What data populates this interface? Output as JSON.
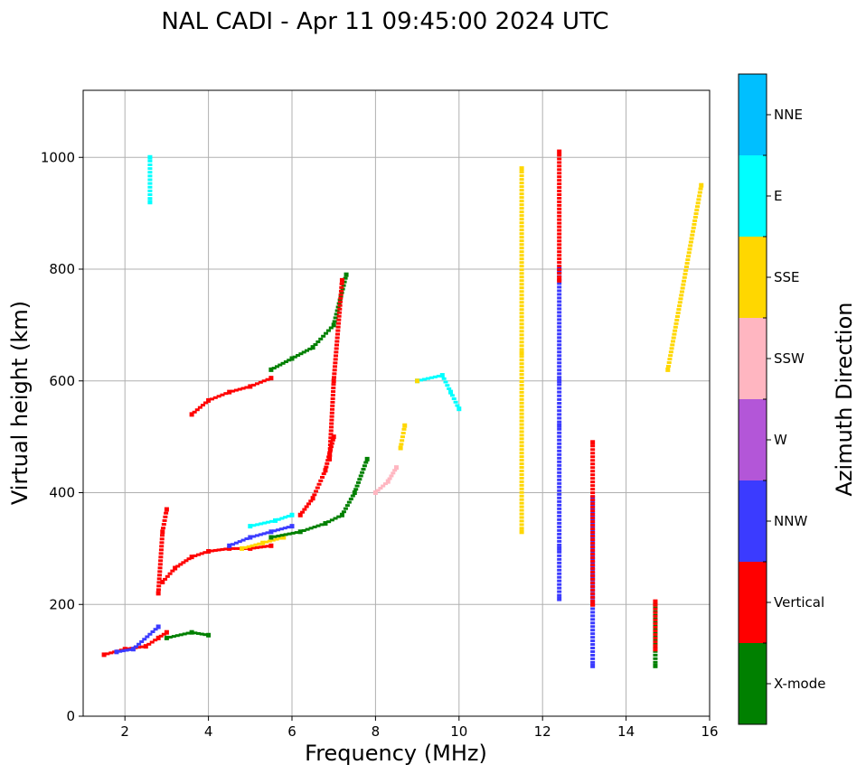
{
  "chart_data": {
    "type": "scatter",
    "title": "NAL CADI - Apr 11 09:45:00 2024 UTC",
    "xlabel": "Frequency (MHz)",
    "ylabel": "Virtual height (km)",
    "xlim": [
      1,
      16
    ],
    "ylim": [
      0,
      1120
    ],
    "xticks": [
      "2",
      "4",
      "6",
      "8",
      "10",
      "12",
      "14",
      "16"
    ],
    "xtick_values": [
      2,
      4,
      6,
      8,
      10,
      12,
      14,
      16
    ],
    "yticks": [
      "0",
      "200",
      "400",
      "600",
      "800",
      "1000"
    ],
    "ytick_values": [
      0,
      200,
      400,
      600,
      800,
      1000
    ],
    "grid": true,
    "colorbar": {
      "label": "Azimuth Direction",
      "categories": [
        {
          "name": "X-mode",
          "color": "#008000"
        },
        {
          "name": "Vertical",
          "color": "#ff0000"
        },
        {
          "name": "NNW",
          "color": "#3b3bff"
        },
        {
          "name": "W",
          "color": "#b356d8"
        },
        {
          "name": "SSW",
          "color": "#ffb6c1"
        },
        {
          "name": "SSE",
          "color": "#ffd700"
        },
        {
          "name": "E",
          "color": "#00ffff"
        },
        {
          "name": "NNE",
          "color": "#00bfff"
        }
      ]
    },
    "segments": [
      {
        "name": "low-trace-vertical",
        "category": "Vertical",
        "x": [
          1.5,
          2.0,
          2.5,
          2.8,
          3.0
        ],
        "y": [
          110,
          120,
          125,
          140,
          150
        ]
      },
      {
        "name": "low-trace-nnw",
        "category": "NNW",
        "x": [
          1.8,
          2.2,
          2.8
        ],
        "y": [
          115,
          120,
          160
        ]
      },
      {
        "name": "low-trace-xmode",
        "category": "X-mode",
        "x": [
          3.0,
          3.6,
          4.0
        ],
        "y": [
          140,
          150,
          145
        ]
      },
      {
        "name": "f1-trace-vertical",
        "category": "Vertical",
        "x": [
          2.9,
          3.2,
          3.6,
          4.0,
          4.5,
          5.0,
          5.5
        ],
        "y": [
          240,
          265,
          285,
          295,
          300,
          300,
          305
        ]
      },
      {
        "name": "f1-trace-vertical-cusp",
        "category": "Vertical",
        "x": [
          2.8,
          2.9,
          3.0
        ],
        "y": [
          220,
          330,
          370
        ]
      },
      {
        "name": "f1-trace-mixed-nnw",
        "category": "NNW",
        "x": [
          4.5,
          5.0,
          5.5,
          6.0
        ],
        "y": [
          305,
          320,
          330,
          340
        ]
      },
      {
        "name": "f1-trace-sse",
        "category": "SSE",
        "x": [
          4.8,
          5.3,
          5.8
        ],
        "y": [
          300,
          310,
          320
        ]
      },
      {
        "name": "f1-trace-e",
        "category": "E",
        "x": [
          5.0,
          5.6,
          6.0
        ],
        "y": [
          340,
          350,
          360
        ]
      },
      {
        "name": "f2-lower-xmode",
        "category": "X-mode",
        "x": [
          5.5,
          6.2,
          6.8,
          7.2,
          7.5,
          7.8
        ],
        "y": [
          320,
          330,
          345,
          360,
          400,
          460
        ]
      },
      {
        "name": "f2-lower-vertical",
        "category": "Vertical",
        "x": [
          6.2,
          6.5,
          6.8,
          7.0
        ],
        "y": [
          360,
          390,
          440,
          500
        ]
      },
      {
        "name": "f2-ssw-tail",
        "category": "SSW",
        "x": [
          8.0,
          8.3,
          8.5
        ],
        "y": [
          400,
          420,
          445
        ]
      },
      {
        "name": "f2-sse-tail",
        "category": "SSE",
        "x": [
          8.6,
          8.7
        ],
        "y": [
          480,
          520
        ]
      },
      {
        "name": "f2-upper-vertical",
        "category": "Vertical",
        "x": [
          3.6,
          4.0,
          4.5,
          5.0,
          5.5
        ],
        "y": [
          540,
          565,
          580,
          590,
          605
        ]
      },
      {
        "name": "f2-upper-xmode",
        "category": "X-mode",
        "x": [
          5.5,
          6.0,
          6.5,
          7.0,
          7.3
        ],
        "y": [
          620,
          640,
          660,
          700,
          790
        ]
      },
      {
        "name": "f2-upper-vertical-vert",
        "category": "Vertical",
        "x": [
          6.9,
          7.0,
          7.2
        ],
        "y": [
          460,
          600,
          780
        ]
      },
      {
        "name": "f2-e-cluster",
        "category": "E",
        "x": [
          9.0,
          9.6,
          9.8,
          10.0
        ],
        "y": [
          600,
          610,
          580,
          550
        ]
      },
      {
        "name": "f2-sse-cluster",
        "category": "SSE",
        "x": [
          9.0
        ],
        "y": [
          600
        ]
      },
      {
        "name": "e-spurious",
        "category": "E",
        "x": [
          2.6,
          2.6
        ],
        "y": [
          920,
          1000
        ]
      },
      {
        "name": "col-11.5-sse",
        "category": "SSE",
        "x": [
          11.5,
          11.5,
          11.5
        ],
        "y": [
          330,
          650,
          980
        ]
      },
      {
        "name": "col-12.4-nnw",
        "category": "NNW",
        "x": [
          12.4,
          12.4,
          12.4,
          12.4,
          12.4
        ],
        "y": [
          210,
          300,
          520,
          600,
          800
        ]
      },
      {
        "name": "col-12.4-vertical",
        "category": "Vertical",
        "x": [
          12.4,
          12.4
        ],
        "y": [
          780,
          1010
        ]
      },
      {
        "name": "col-13.2-nnw",
        "category": "NNW",
        "x": [
          13.2,
          13.2,
          13.2
        ],
        "y": [
          90,
          250,
          390
        ]
      },
      {
        "name": "col-13.2-vertical",
        "category": "Vertical",
        "x": [
          13.2,
          13.2
        ],
        "y": [
          200,
          490
        ]
      },
      {
        "name": "col-14.7-xmode",
        "category": "X-mode",
        "x": [
          14.7,
          14.7
        ],
        "y": [
          90,
          200
        ]
      },
      {
        "name": "col-14.7-vertical",
        "category": "Vertical",
        "x": [
          14.7,
          14.7
        ],
        "y": [
          120,
          205
        ]
      },
      {
        "name": "high-right-sse",
        "category": "SSE",
        "x": [
          15.0,
          15.8
        ],
        "y": [
          620,
          950
        ]
      }
    ]
  }
}
